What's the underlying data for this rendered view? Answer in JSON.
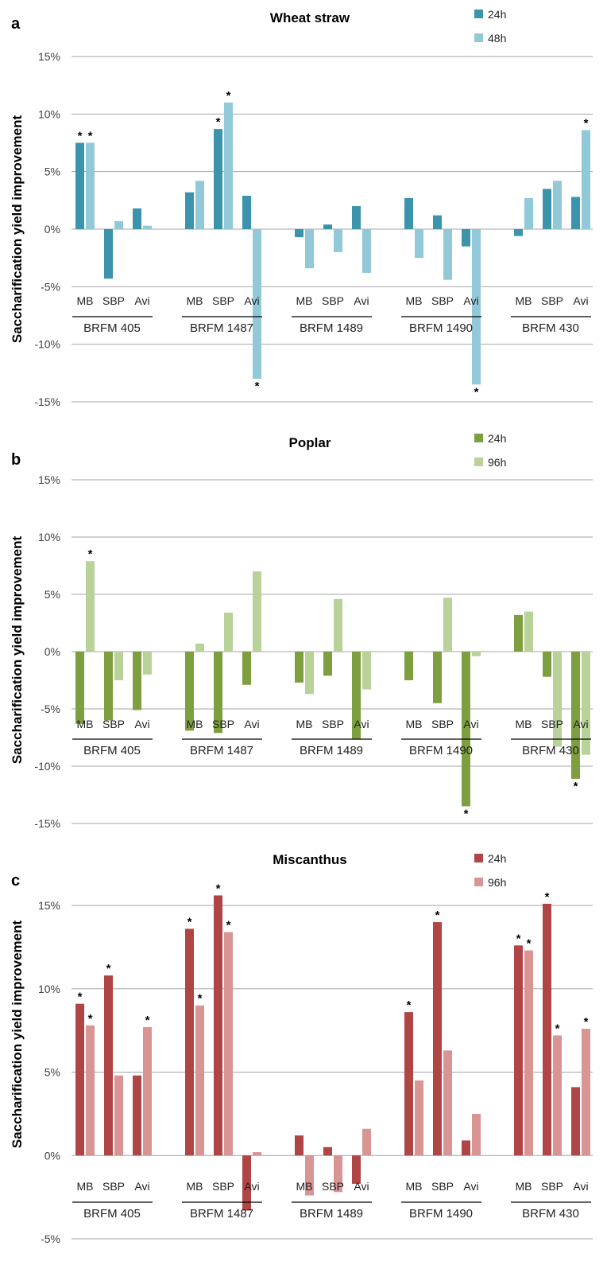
{
  "chart_data": [
    {
      "type": "bar",
      "panel_label": "a",
      "title": "Wheat straw",
      "ylabel": "Saccharification yield improvement",
      "ylim": [
        -15,
        15
      ],
      "yticks": [
        "15%",
        "10%",
        "5%",
        "0%",
        "-5%",
        "-10%",
        "-15%"
      ],
      "grid": true,
      "legend_position": "top-right",
      "groups": [
        "BRFM 405",
        "BRFM 1487",
        "BRFM 1489",
        "BRFM 1490",
        "BRFM 430"
      ],
      "categories": [
        "MB",
        "SBP",
        "Avi"
      ],
      "series": [
        {
          "name": "24h",
          "color": "#3b94ab",
          "values": [
            [
              7.5,
              -4.3,
              1.8
            ],
            [
              3.2,
              8.7,
              2.9
            ],
            [
              -0.7,
              0.4,
              2.0
            ],
            [
              2.7,
              1.2,
              -1.5
            ],
            [
              -0.6,
              3.5,
              2.8
            ]
          ],
          "significant": [
            [
              true,
              false,
              false
            ],
            [
              false,
              true,
              false
            ],
            [
              false,
              false,
              false
            ],
            [
              false,
              false,
              false
            ],
            [
              false,
              false,
              false
            ]
          ]
        },
        {
          "name": "48h",
          "color": "#92c9d9",
          "values": [
            [
              7.5,
              0.7,
              0.3
            ],
            [
              4.2,
              11.0,
              -13.0
            ],
            [
              -3.4,
              -2.0,
              -3.8
            ],
            [
              -2.5,
              -4.4,
              -13.5
            ],
            [
              2.7,
              4.2,
              8.6
            ]
          ],
          "significant": [
            [
              true,
              false,
              false
            ],
            [
              false,
              true,
              true
            ],
            [
              false,
              false,
              false
            ],
            [
              false,
              false,
              true
            ],
            [
              false,
              false,
              true
            ]
          ]
        }
      ]
    },
    {
      "type": "bar",
      "panel_label": "b",
      "title": "Poplar",
      "ylabel": "Saccharification yield improvement",
      "ylim": [
        -15,
        15
      ],
      "yticks": [
        "15%",
        "10%",
        "5%",
        "0%",
        "-5%",
        "-10%",
        "-15%"
      ],
      "grid": true,
      "legend_position": "top-right",
      "groups": [
        "BRFM 405",
        "BRFM 1487",
        "BRFM 1489",
        "BRFM 1490",
        "BRFM 430"
      ],
      "categories": [
        "MB",
        "SBP",
        "Avi"
      ],
      "series": [
        {
          "name": "24h",
          "color": "#7e9f3f",
          "values": [
            [
              -6.3,
              -6.0,
              -5.1
            ],
            [
              -6.9,
              -7.1,
              -2.9
            ],
            [
              -2.7,
              -2.1,
              -7.6
            ],
            [
              -2.5,
              -4.5,
              -13.5
            ],
            [
              3.2,
              -2.2,
              -11.1
            ]
          ],
          "significant": [
            [
              false,
              false,
              false
            ],
            [
              false,
              false,
              false
            ],
            [
              false,
              false,
              false
            ],
            [
              false,
              false,
              true
            ],
            [
              false,
              false,
              true
            ]
          ]
        },
        {
          "name": "96h",
          "color": "#b8d29a",
          "values": [
            [
              7.9,
              -2.5,
              -2.0
            ],
            [
              0.7,
              3.4,
              7.0
            ],
            [
              -3.7,
              4.6,
              -3.3
            ],
            [
              0.0,
              4.7,
              -0.4
            ],
            [
              3.5,
              -8.3,
              -9.0
            ]
          ],
          "significant": [
            [
              true,
              false,
              false
            ],
            [
              false,
              false,
              false
            ],
            [
              false,
              false,
              false
            ],
            [
              false,
              false,
              false
            ],
            [
              false,
              false,
              false
            ]
          ]
        }
      ]
    },
    {
      "type": "bar",
      "panel_label": "c",
      "title": "Miscanthus",
      "ylabel": "Saccharification yield improvement",
      "ylim": [
        -5,
        15
      ],
      "yticks": [
        "15%",
        "10%",
        "5%",
        "0%",
        "-5%"
      ],
      "grid": true,
      "legend_position": "top-right",
      "groups": [
        "BRFM 405",
        "BRFM 1487",
        "BRFM 1489",
        "BRFM 1490",
        "BRFM 430"
      ],
      "categories": [
        "MB",
        "SBP",
        "Avi"
      ],
      "series": [
        {
          "name": "24h",
          "color": "#b04545",
          "values": [
            [
              9.1,
              10.8,
              4.8
            ],
            [
              13.6,
              15.6,
              -3.3
            ],
            [
              1.2,
              0.5,
              -1.7
            ],
            [
              8.6,
              14.0,
              0.9
            ],
            [
              12.6,
              15.1,
              4.1
            ]
          ],
          "significant": [
            [
              true,
              true,
              false
            ],
            [
              true,
              true,
              false
            ],
            [
              false,
              false,
              false
            ],
            [
              true,
              true,
              false
            ],
            [
              true,
              true,
              false
            ]
          ]
        },
        {
          "name": "96h",
          "color": "#d99494",
          "values": [
            [
              7.8,
              4.8,
              7.7
            ],
            [
              9.0,
              13.4,
              0.2
            ],
            [
              -2.4,
              -2.2,
              1.6
            ],
            [
              4.5,
              6.3,
              2.5
            ],
            [
              12.3,
              7.2,
              7.6
            ]
          ],
          "significant": [
            [
              true,
              false,
              true
            ],
            [
              true,
              true,
              false
            ],
            [
              false,
              false,
              false
            ],
            [
              false,
              false,
              false
            ],
            [
              true,
              true,
              true
            ]
          ]
        }
      ]
    }
  ]
}
